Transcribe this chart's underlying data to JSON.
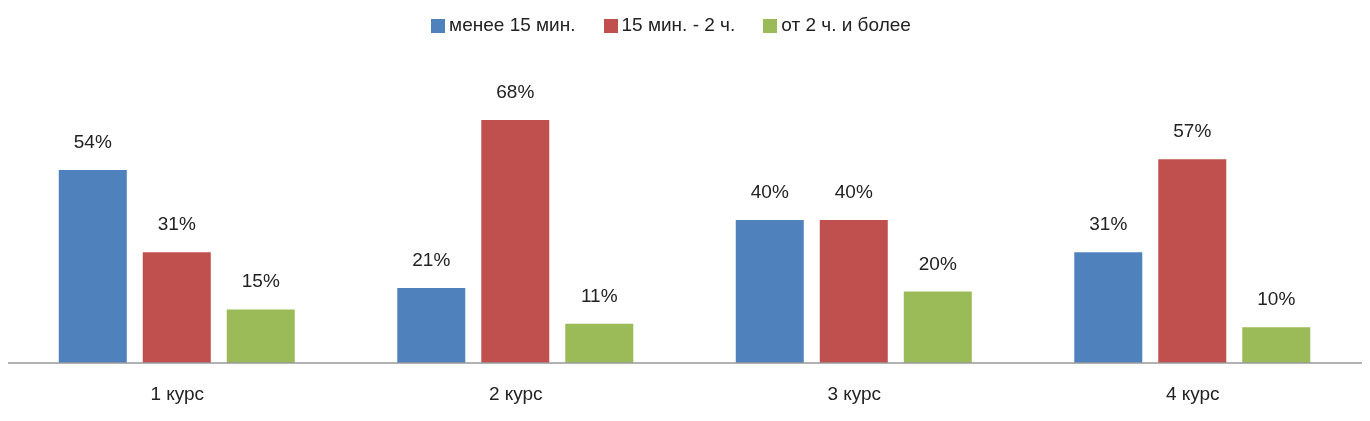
{
  "chart_data": {
    "type": "bar",
    "categories": [
      "1 курс",
      "2 курс",
      "3 курс",
      "4 курс"
    ],
    "series": [
      {
        "name": "менее  15 мин.",
        "color": "#4f81bd",
        "values": [
          54,
          21,
          40,
          31
        ],
        "value_labels": [
          "54%",
          "21%",
          "40%",
          "31%"
        ]
      },
      {
        "name": "15 мин. - 2 ч.",
        "color": "#c0504d",
        "values": [
          31,
          68,
          40,
          57
        ],
        "value_labels": [
          "31%",
          "68%",
          "40%",
          "57%"
        ]
      },
      {
        "name": "от 2 ч. и более",
        "color": "#9bbb59",
        "values": [
          15,
          11,
          20,
          10
        ],
        "value_labels": [
          "15%",
          "11%",
          "20%",
          "10%"
        ]
      }
    ],
    "legend": "top",
    "grid": false
  }
}
